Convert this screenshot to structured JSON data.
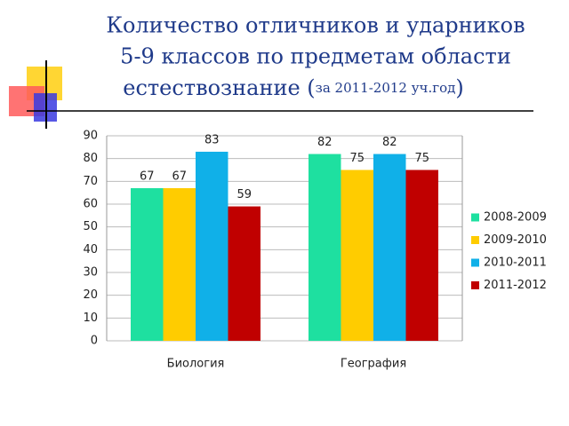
{
  "chart_data": {
    "type": "bar",
    "title": [
      "Количество отличников и ударников",
      "5-9 классов по предметам области",
      "естествознание (",
      "за 2011-2012 уч.год",
      ")"
    ],
    "categories": [
      "Биология",
      "География"
    ],
    "series": [
      {
        "name": "2008-2009",
        "color": "#1ee0a0",
        "values": [
          67,
          82
        ]
      },
      {
        "name": "2009-2010",
        "color": "#ffcc00",
        "values": [
          67,
          75
        ]
      },
      {
        "name": "2010-2011",
        "color": "#10b0e8",
        "values": [
          83,
          82
        ]
      },
      {
        "name": "2011-2012",
        "color": "#c00000",
        "values": [
          59,
          75
        ]
      }
    ],
    "ylim": [
      0,
      90
    ],
    "yticks": [
      0,
      10,
      20,
      30,
      40,
      50,
      60,
      70,
      80,
      90
    ],
    "grid": true,
    "legend": "right"
  }
}
